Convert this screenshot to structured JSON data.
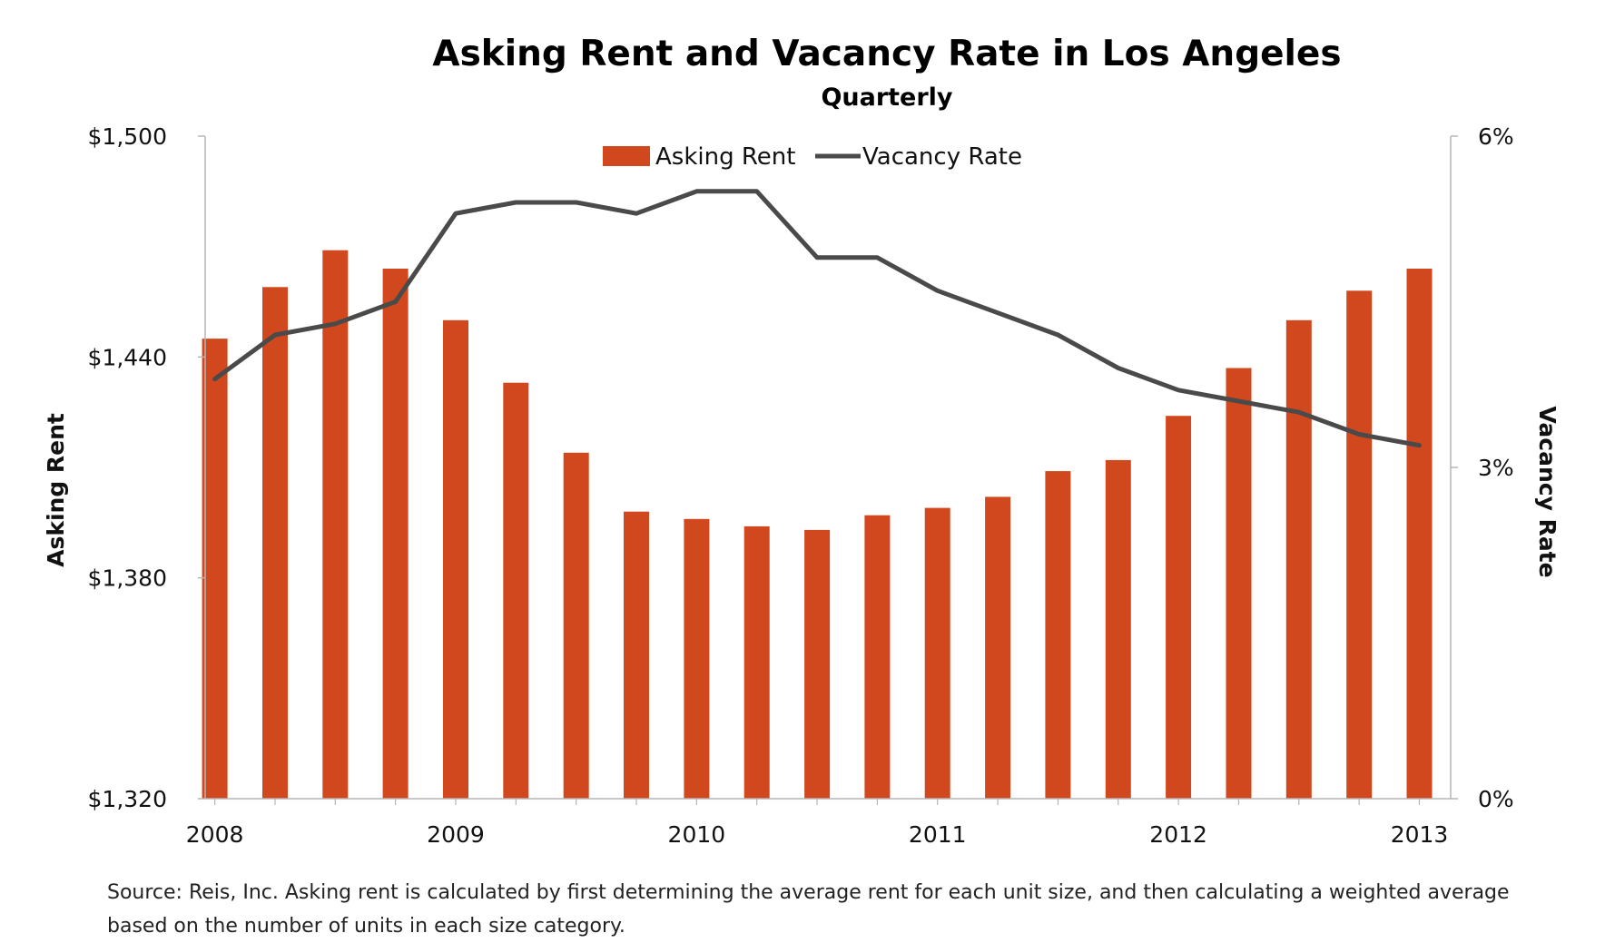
{
  "chart_data": {
    "type": "bar",
    "title": "Asking Rent and Vacancy Rate in Los Angeles",
    "subtitle": "Quarterly",
    "ylabel": "Asking Rent",
    "y2label": "Vacancy Rate",
    "x": [
      2008.0,
      2008.25,
      2008.5,
      2008.75,
      2009.0,
      2009.25,
      2009.5,
      2009.75,
      2010.0,
      2010.25,
      2010.5,
      2010.75,
      2011.0,
      2011.25,
      2011.5,
      2011.75,
      2012.0,
      2012.25,
      2012.5,
      2012.75,
      2013.0
    ],
    "xlim": [
      2007.96,
      2013.13
    ],
    "xticks": [
      2008,
      2009,
      2010,
      2011,
      2012,
      2013
    ],
    "xtick_labels": [
      "2008",
      "2009",
      "2010",
      "2011",
      "2012",
      "2013"
    ],
    "ylim": [
      1320,
      1500
    ],
    "yticks": [
      1320,
      1380,
      1440,
      1500
    ],
    "ytick_labels": [
      "$1,320",
      "$1,380",
      "$1,440",
      "$1,500"
    ],
    "y2lim": [
      0,
      6
    ],
    "y2ticks": [
      0,
      3,
      6
    ],
    "y2tick_labels": [
      "0%",
      "3%",
      "6%"
    ],
    "series": [
      {
        "name": "Asking Rent",
        "type": "bar",
        "axis": "left",
        "color": "#d2481e",
        "values": [
          1445,
          1459,
          1469,
          1464,
          1450,
          1433,
          1414,
          1398,
          1396,
          1394,
          1393,
          1397,
          1399,
          1402,
          1409,
          1412,
          1424,
          1437,
          1450,
          1458,
          1464
        ]
      },
      {
        "name": "Vacancy Rate",
        "type": "line",
        "axis": "right",
        "color": "#4a4a4a",
        "values": [
          3.8,
          4.2,
          4.3,
          4.5,
          5.3,
          5.4,
          5.4,
          5.3,
          5.5,
          5.5,
          4.9,
          4.9,
          4.6,
          4.4,
          4.2,
          3.9,
          3.7,
          3.6,
          3.5,
          3.3,
          3.2
        ]
      }
    ],
    "legend": "top-center",
    "grid": false,
    "source_note": "Source: Reis, Inc. Asking rent is calculated by first determining the average rent for each unit size, and then calculating a weighted average based on the number of units in each size category."
  }
}
